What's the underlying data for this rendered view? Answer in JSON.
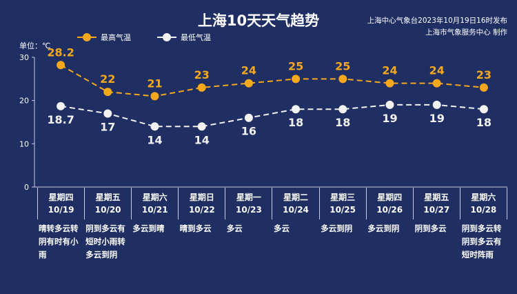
{
  "header": {
    "title": "上海10天天气趋势",
    "publisher_line1": "上海中心气象台2023年10月19日16时发布",
    "publisher_line2": "上海市气象服务中心 制作"
  },
  "colors": {
    "background": "#1f2f63",
    "high": "#f5a81c",
    "low": "#f2f2f2"
  },
  "chart_data": {
    "type": "line",
    "unit_label": "单位：℃",
    "ylim": [
      0,
      30
    ],
    "yticks": [
      "0",
      "10",
      "20",
      "30"
    ],
    "grid": false,
    "legend_position": "top-left",
    "series": [
      {
        "name": "最高气温",
        "values": [
          28.2,
          22,
          21,
          23,
          24,
          25,
          25,
          24,
          24,
          23
        ],
        "labels": [
          "28.2",
          "22",
          "21",
          "23",
          "24",
          "25",
          "25",
          "24",
          "24",
          "23"
        ]
      },
      {
        "name": "最低气温",
        "values": [
          18.7,
          17,
          14,
          14,
          16,
          18,
          18,
          19,
          19,
          18
        ],
        "labels": [
          "18.7",
          "17",
          "14",
          "14",
          "16",
          "18",
          "18",
          "19",
          "19",
          "18"
        ]
      }
    ],
    "days": [
      {
        "weekday": "星期四",
        "date": "10/19",
        "weather": "晴转多云转阴有时有小雨"
      },
      {
        "weekday": "星期五",
        "date": "10/20",
        "weather": "阴到多云有短时小雨转多云到阴"
      },
      {
        "weekday": "星期六",
        "date": "10/21",
        "weather": "多云到晴"
      },
      {
        "weekday": "星期日",
        "date": "10/22",
        "weather": "晴到多云"
      },
      {
        "weekday": "星期一",
        "date": "10/23",
        "weather": "多云"
      },
      {
        "weekday": "星期二",
        "date": "10/24",
        "weather": "多云"
      },
      {
        "weekday": "星期三",
        "date": "10/25",
        "weather": "多云到阴"
      },
      {
        "weekday": "星期四",
        "date": "10/26",
        "weather": "多云到阴"
      },
      {
        "weekday": "星期五",
        "date": "10/27",
        "weather": "阴到多云"
      },
      {
        "weekday": "星期六",
        "date": "10/28",
        "weather": "阴到多云转阴到多云有短时阵雨"
      }
    ]
  }
}
